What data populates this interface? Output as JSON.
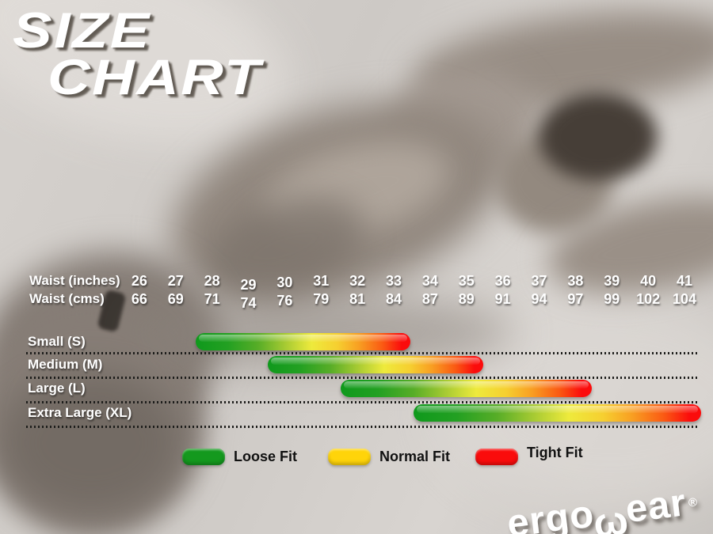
{
  "title": {
    "line1": "SIZE",
    "line2": "CHART"
  },
  "axis": {
    "row1_label": "Waist (inches)",
    "row2_label": "Waist (cms)",
    "inches": [
      "26",
      "27",
      "28",
      "29",
      "30",
      "31",
      "32",
      "33",
      "34",
      "35",
      "36",
      "37",
      "38",
      "39",
      "40",
      "41"
    ],
    "cms": [
      "66",
      "69",
      "71",
      "74",
      "76",
      "79",
      "81",
      "84",
      "87",
      "89",
      "91",
      "94",
      "97",
      "99",
      "102",
      "104"
    ]
  },
  "sizes": [
    {
      "label": "Small (S)",
      "start_inch": 28,
      "end_inch": 33,
      "start_cm": 71,
      "end_cm": 84
    },
    {
      "label": "Medium (M)",
      "start_inch": 30,
      "end_inch": 35,
      "start_cm": 76,
      "end_cm": 89
    },
    {
      "label": "Large (L)",
      "start_inch": 32,
      "end_inch": 38,
      "start_cm": 81,
      "end_cm": 97
    },
    {
      "label": "Extra Large (XL)",
      "start_inch": 34,
      "end_inch": 41,
      "start_cm": 87,
      "end_cm": 104
    }
  ],
  "legend": {
    "items": [
      {
        "label": "Loose Fit",
        "color": "#14991e"
      },
      {
        "label": "Normal Fit",
        "color": "#ffd40a"
      },
      {
        "label": "Tight Fit",
        "color": "#fa0c0c"
      }
    ]
  },
  "logo": {
    "pre": "ergo",
    "omega": "ω",
    "post": "ear",
    "reg": "®"
  },
  "colors": {
    "bar_gradient": [
      "#0f991c",
      "#57ad27",
      "#a8cb33",
      "#eeea3c",
      "#f89f22",
      "#fb0c0c"
    ],
    "dotted_line": "#1d1d1b",
    "label_text": "#ffffff",
    "legend_text": "#111111"
  },
  "chart_data": {
    "type": "bar",
    "orientation": "horizontal-range",
    "title": "SIZE CHART",
    "x_axis": {
      "primary_label": "Waist (inches)",
      "primary_ticks": [
        26,
        27,
        28,
        29,
        30,
        31,
        32,
        33,
        34,
        35,
        36,
        37,
        38,
        39,
        40,
        41
      ],
      "secondary_label": "Waist (cms)",
      "secondary_ticks": [
        66,
        69,
        71,
        74,
        76,
        79,
        81,
        84,
        87,
        89,
        91,
        94,
        97,
        99,
        102,
        104
      ]
    },
    "series": [
      {
        "name": "Small (S)",
        "waist_inches": [
          28,
          33
        ],
        "waist_cms": [
          71,
          84
        ]
      },
      {
        "name": "Medium (M)",
        "waist_inches": [
          30,
          35
        ],
        "waist_cms": [
          76,
          89
        ]
      },
      {
        "name": "Large (L)",
        "waist_inches": [
          32,
          38
        ],
        "waist_cms": [
          81,
          97
        ]
      },
      {
        "name": "Extra Large (XL)",
        "waist_inches": [
          34,
          41
        ],
        "waist_cms": [
          87,
          104
        ]
      }
    ],
    "legend": [
      {
        "label": "Loose Fit",
        "color": "#14991e"
      },
      {
        "label": "Normal Fit",
        "color": "#ffd40a"
      },
      {
        "label": "Tight Fit",
        "color": "#fa0c0c"
      }
    ],
    "bar_color_encoding": "each size bar grades green (loose) through yellow (normal) to red (tight) across its waist range"
  }
}
